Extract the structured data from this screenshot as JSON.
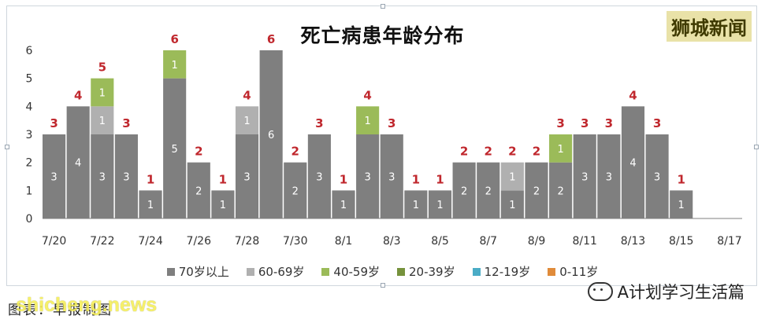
{
  "chart_data": {
    "type": "bar",
    "stacked": true,
    "title": "死亡病患年龄分布",
    "ylim": [
      0,
      6
    ],
    "yticks": [
      0,
      1,
      2,
      3,
      4,
      5,
      6
    ],
    "grid": false,
    "legend_position": "bottom",
    "categories": [
      "7/20",
      "7/21",
      "7/22",
      "7/23",
      "7/24",
      "7/25",
      "7/26",
      "7/27",
      "7/28",
      "7/29",
      "7/30",
      "7/31",
      "8/1",
      "8/2",
      "8/3",
      "8/4",
      "8/5",
      "8/6",
      "8/7",
      "8/8",
      "8/9",
      "8/10",
      "8/11",
      "8/12",
      "8/13",
      "8/14",
      "8/15",
      "8/16",
      "8/17"
    ],
    "tick_labels": [
      "7/20",
      "7/22",
      "7/24",
      "7/26",
      "7/28",
      "7/30",
      "8/1",
      "8/3",
      "8/5",
      "8/7",
      "8/9",
      "8/11",
      "8/13",
      "8/15",
      "8/17"
    ],
    "series": [
      {
        "name": "70岁以上",
        "color": "#7f7f7f",
        "values": [
          3,
          4,
          3,
          3,
          1,
          5,
          2,
          1,
          3,
          6,
          2,
          3,
          1,
          3,
          3,
          1,
          1,
          2,
          2,
          1,
          2,
          2,
          3,
          3,
          4,
          3,
          1,
          0,
          0
        ]
      },
      {
        "name": "60-69岁",
        "color": "#b0b0b0",
        "values": [
          0,
          0,
          1,
          0,
          0,
          0,
          0,
          0,
          1,
          0,
          0,
          0,
          0,
          0,
          0,
          0,
          0,
          0,
          0,
          1,
          0,
          0,
          0,
          0,
          0,
          0,
          0,
          0,
          0
        ]
      },
      {
        "name": "40-59岁",
        "color": "#9bbb59",
        "values": [
          0,
          0,
          1,
          0,
          0,
          1,
          0,
          0,
          0,
          0,
          0,
          0,
          0,
          1,
          0,
          0,
          0,
          0,
          0,
          0,
          0,
          1,
          0,
          0,
          0,
          0,
          0,
          0,
          0
        ]
      },
      {
        "name": "20-39岁",
        "color": "#76923c",
        "values": [
          0,
          0,
          0,
          0,
          0,
          0,
          0,
          0,
          0,
          0,
          0,
          0,
          0,
          0,
          0,
          0,
          0,
          0,
          0,
          0,
          0,
          0,
          0,
          0,
          0,
          0,
          0,
          0,
          0
        ]
      },
      {
        "name": "12-19岁",
        "color": "#4bacc6",
        "values": [
          0,
          0,
          0,
          0,
          0,
          0,
          0,
          0,
          0,
          0,
          0,
          0,
          0,
          0,
          0,
          0,
          0,
          0,
          0,
          0,
          0,
          0,
          0,
          0,
          0,
          0,
          0,
          0,
          0
        ]
      },
      {
        "name": "0-11岁",
        "color": "#e08b3a",
        "values": [
          0,
          0,
          0,
          0,
          0,
          0,
          0,
          0,
          0,
          0,
          0,
          0,
          0,
          0,
          0,
          0,
          0,
          0,
          0,
          0,
          0,
          0,
          0,
          0,
          0,
          0,
          0,
          0,
          0
        ]
      }
    ],
    "totals": [
      3,
      4,
      5,
      3,
      1,
      6,
      2,
      1,
      4,
      6,
      2,
      3,
      1,
      4,
      3,
      1,
      1,
      2,
      2,
      2,
      2,
      3,
      3,
      3,
      4,
      3,
      1,
      0,
      0
    ],
    "total_label_color": "#c0272d"
  },
  "branding": {
    "badge": "狮城新闻",
    "wechat_account": "A计划学习生活篇",
    "footer_left": "图表：早报制图",
    "watermark": "shicheng.news"
  }
}
